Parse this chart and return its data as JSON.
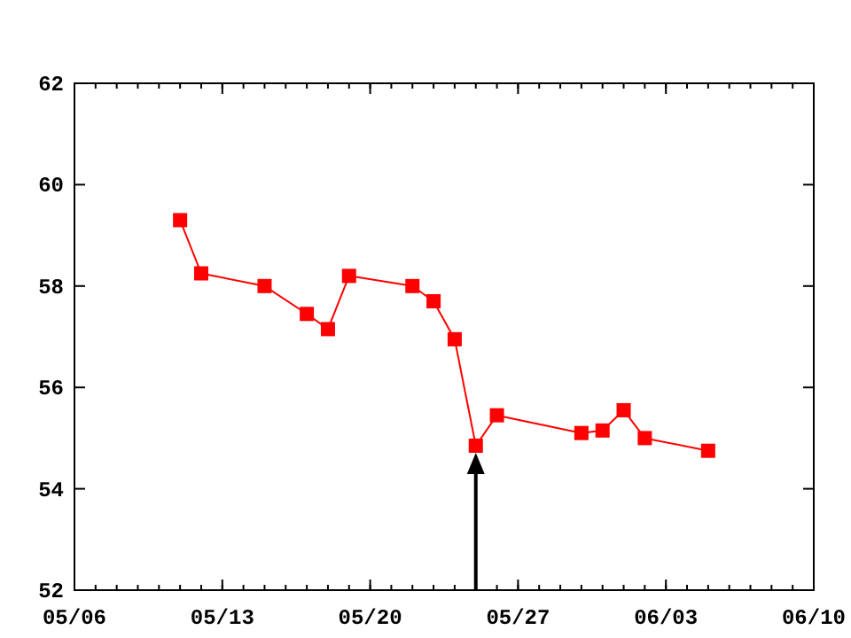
{
  "chart_data": {
    "type": "line",
    "x": [
      "--05-11",
      "--05-12",
      "--05-15",
      "--05-17",
      "--05-18",
      "--05-19",
      "--05-22",
      "--05-23",
      "--05-24",
      "--05-25",
      "--05-26",
      "--05-30",
      "--05-31",
      "--06-01",
      "--06-02",
      "--06-05"
    ],
    "series": [
      {
        "color": "#ff0000",
        "values": [
          59.3,
          58.25,
          58.0,
          57.45,
          57.15,
          58.2,
          58.0,
          57.7,
          56.95,
          54.85,
          55.45,
          55.1,
          55.15,
          55.55,
          55.0,
          54.75
        ]
      }
    ],
    "xlim": [
      "--05-06",
      "--06-10"
    ],
    "xticks": [
      {
        "value": "--05-06",
        "label": "05/06"
      },
      {
        "value": "--05-13",
        "label": "05/13"
      },
      {
        "value": "--05-20",
        "label": "05/20"
      },
      {
        "value": "--05-27",
        "label": "05/27"
      },
      {
        "value": "--06-03",
        "label": "06/03"
      },
      {
        "value": "--06-10",
        "label": "06/10"
      }
    ],
    "ylim": [
      52,
      62
    ],
    "yticks": [
      52,
      54,
      56,
      58,
      60,
      62
    ],
    "marker": "square",
    "line_style": "solid",
    "grid": false
  }
}
